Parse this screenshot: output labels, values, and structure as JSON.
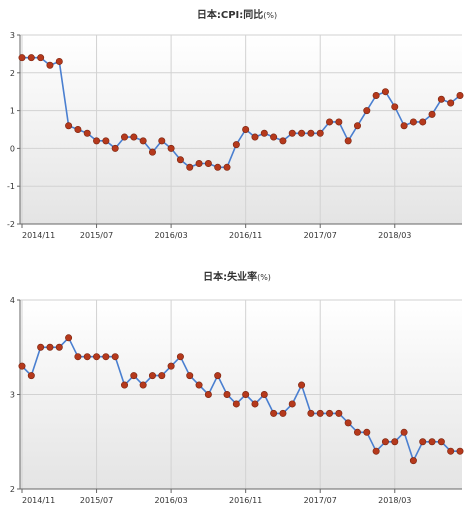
{
  "chart_data": [
    {
      "type": "line",
      "title": "日本:CPI:同比",
      "unit": "(%)",
      "xlabel": "",
      "ylabel": "",
      "ylim": [
        -2,
        3
      ],
      "yticks": [
        "-2",
        "-1",
        "0",
        "1",
        "2",
        "3"
      ],
      "xtick_labels": [
        "2014/11",
        "2015/07",
        "2016/03",
        "2016/11",
        "2017/07",
        "2018/03"
      ],
      "grid": true,
      "legend": "none",
      "line_color": "#4a7fd0",
      "marker_color": "#b5391c",
      "x": [
        "2014/11",
        "2014/12",
        "2015/01",
        "2015/02",
        "2015/03",
        "2015/04",
        "2015/05",
        "2015/06",
        "2015/07",
        "2015/08",
        "2015/09",
        "2015/10",
        "2015/11",
        "2015/12",
        "2016/01",
        "2016/02",
        "2016/03",
        "2016/04",
        "2016/05",
        "2016/06",
        "2016/07",
        "2016/08",
        "2016/09",
        "2016/10",
        "2016/11",
        "2016/12",
        "2017/01",
        "2017/02",
        "2017/03",
        "2017/04",
        "2017/05",
        "2017/06",
        "2017/07",
        "2017/08",
        "2017/09",
        "2017/10",
        "2017/11",
        "2017/12",
        "2018/01",
        "2018/02",
        "2018/03",
        "2018/04",
        "2018/05",
        "2018/06",
        "2018/07",
        "2018/08",
        "2018/09",
        "2018/10"
      ],
      "values": [
        2.4,
        2.4,
        2.4,
        2.2,
        2.3,
        0.6,
        0.5,
        0.4,
        0.2,
        0.2,
        0.0,
        0.3,
        0.3,
        0.2,
        -0.1,
        0.2,
        0.0,
        -0.3,
        -0.5,
        -0.4,
        -0.4,
        -0.5,
        -0.5,
        0.1,
        0.5,
        0.3,
        0.4,
        0.3,
        0.2,
        0.4,
        0.4,
        0.4,
        0.4,
        0.7,
        0.7,
        0.2,
        0.6,
        1.0,
        1.4,
        1.5,
        1.1,
        0.6,
        0.7,
        0.7,
        0.9,
        1.3,
        1.2,
        1.4
      ]
    },
    {
      "type": "line",
      "title": "日本:失业率",
      "unit": "(%)",
      "xlabel": "",
      "ylabel": "",
      "ylim": [
        2,
        4
      ],
      "yticks": [
        "2",
        "3",
        "4"
      ],
      "xtick_labels": [
        "2014/11",
        "2015/07",
        "2016/03",
        "2016/11",
        "2017/07",
        "2018/03"
      ],
      "grid": true,
      "legend": "none",
      "line_color": "#4a7fd0",
      "marker_color": "#b5391c",
      "x": [
        "2014/11",
        "2014/12",
        "2015/01",
        "2015/02",
        "2015/03",
        "2015/04",
        "2015/05",
        "2015/06",
        "2015/07",
        "2015/08",
        "2015/09",
        "2015/10",
        "2015/11",
        "2015/12",
        "2016/01",
        "2016/02",
        "2016/03",
        "2016/04",
        "2016/05",
        "2016/06",
        "2016/07",
        "2016/08",
        "2016/09",
        "2016/10",
        "2016/11",
        "2016/12",
        "2017/01",
        "2017/02",
        "2017/03",
        "2017/04",
        "2017/05",
        "2017/06",
        "2017/07",
        "2017/08",
        "2017/09",
        "2017/10",
        "2017/11",
        "2017/12",
        "2018/01",
        "2018/02",
        "2018/03",
        "2018/04",
        "2018/05",
        "2018/06",
        "2018/07",
        "2018/08",
        "2018/09",
        "2018/10"
      ],
      "values": [
        3.3,
        3.2,
        3.5,
        3.5,
        3.5,
        3.6,
        3.4,
        3.4,
        3.4,
        3.4,
        3.4,
        3.1,
        3.2,
        3.1,
        3.2,
        3.2,
        3.3,
        3.4,
        3.2,
        3.1,
        3.0,
        3.2,
        3.0,
        2.9,
        3.0,
        2.9,
        3.0,
        2.8,
        2.8,
        2.9,
        3.1,
        2.8,
        2.8,
        2.8,
        2.8,
        2.7,
        2.6,
        2.6,
        2.4,
        2.5,
        2.5,
        2.6,
        2.3,
        2.5,
        2.5,
        2.5,
        2.4,
        2.4
      ]
    }
  ]
}
